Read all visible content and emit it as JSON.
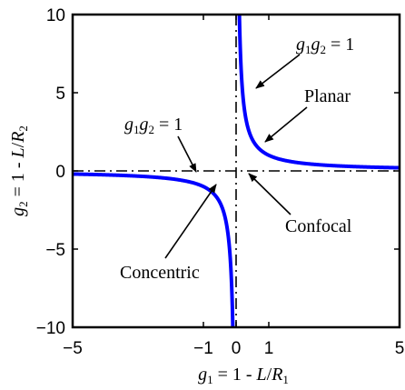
{
  "chart_data": {
    "type": "line",
    "title": "",
    "xlabel": {
      "prefix": "g",
      "sub": "1",
      "rest": " = 1 - ",
      "var": "L",
      "slash": "/",
      "var2": "R",
      "sub2": "1"
    },
    "ylabel": {
      "prefix": "g",
      "sub": "2",
      "rest": " = 1 - ",
      "var": "L",
      "slash": "/",
      "var2": "R",
      "sub2": "2"
    },
    "xlim": [
      -5,
      5
    ],
    "ylim": [
      -10,
      10
    ],
    "x_ticks": [
      -5,
      -1,
      0,
      1,
      5
    ],
    "x_tick_labels": [
      "−5",
      "−1",
      "0",
      "1",
      "5"
    ],
    "y_ticks": [
      -10,
      -5,
      0,
      5,
      10
    ],
    "y_tick_labels": [
      "−10",
      "−5",
      "0",
      "5",
      "10"
    ],
    "grid": false,
    "series": [
      {
        "function": "y = 1/x",
        "branch": "x > 0",
        "x_from": 0.1,
        "x_to": 5,
        "color": "#0000ff"
      },
      {
        "function": "y = 1/x",
        "branch": "x < 0",
        "x_from": -5,
        "x_to": -0.1,
        "color": "#0000ff"
      }
    ],
    "reference_lines": [
      {
        "orientation": "horizontal",
        "value": 0,
        "style": "dash-dot",
        "color": "#000000"
      },
      {
        "orientation": "vertical",
        "value": 0,
        "style": "dash-dot",
        "color": "#000000"
      }
    ],
    "annotations": [
      {
        "id": "g1g2-right",
        "text": "g₁g₂ = 1",
        "parts": [
          "g",
          "1",
          "g",
          "2",
          " = 1"
        ],
        "arrow_to": [
          0.18,
          5.6
        ]
      },
      {
        "id": "planar",
        "text": "Planar",
        "arrow_to": [
          0.32,
          1.7
        ]
      },
      {
        "id": "g1g2-left",
        "text": "g₁g₂ = 1",
        "parts": [
          "g",
          "1",
          "g",
          "2",
          " = 1"
        ],
        "arrow_to": [
          -1.2,
          -0.1
        ]
      },
      {
        "id": "confocal",
        "text": "Confocal",
        "arrow_to": [
          0,
          0
        ]
      },
      {
        "id": "concentric",
        "text": "Concentric",
        "arrow_to": [
          -0.65,
          -1.1
        ]
      }
    ]
  }
}
